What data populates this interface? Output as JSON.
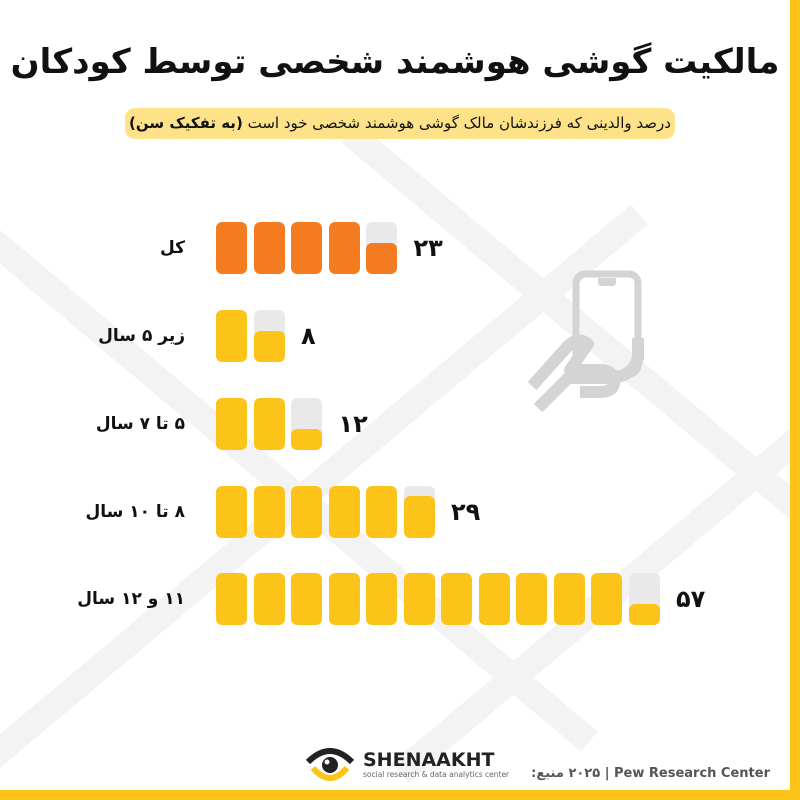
{
  "title": "مالکیت گوشی هوشمند شخصی توسط کودکان",
  "subtitle": {
    "text": "درصد والدینی که فرزندشان مالک گوشی هوشمند شخصی خود است",
    "emphasis": "(به تفکیک سن)"
  },
  "colors": {
    "total": "#f47b20",
    "age_groups": "#fcc419",
    "empty": "#e9e9e9",
    "pill": "#fde28a",
    "border": "#fcc419"
  },
  "chart_data": {
    "type": "bar",
    "style": "unit blocks, each block = 5%",
    "orientation": "horizontal",
    "categories": [
      "کل",
      "زیر ۵ سال",
      "۵ تا ۷ سال",
      "۸ تا ۱۰ سال",
      "۱۱ و ۱۲ سال"
    ],
    "values": [
      23,
      8,
      12,
      29,
      57
    ],
    "value_labels": [
      "۲۳",
      "۸",
      "۱۲",
      "۲۹",
      "۵۷"
    ],
    "unit": "%",
    "block_value": 5
  },
  "icon": "hand-holding-phone-icon",
  "footer": {
    "brand": "SHENAAKHT",
    "brand_sub": "social research & data analytics center",
    "source_label": "منبع:",
    "source_year": "۲۰۲۵",
    "source_name": "Pew Research Center"
  }
}
